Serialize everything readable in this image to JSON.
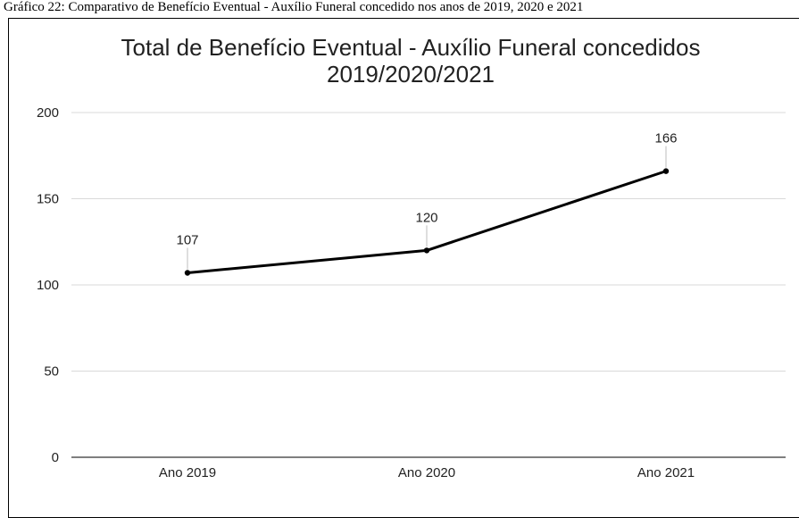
{
  "caption": "Gráfico 22: Comparativo de Benefício Eventual - Auxílio Funeral concedido nos anos de 2019, 2020 e 2021",
  "chart_data": {
    "type": "line",
    "title": "Total de Benefício Eventual - Auxílio Funeral concedidos",
    "subtitle": "2019/2020/2021",
    "categories": [
      "Ano 2019",
      "Ano 2020",
      "Ano 2021"
    ],
    "values": [
      107,
      120,
      166
    ],
    "data_labels": [
      "107",
      "120",
      "166"
    ],
    "y_ticks": [
      0,
      50,
      100,
      150,
      200
    ],
    "ylim": [
      0,
      200
    ],
    "grid": true,
    "legend": "none",
    "colors": {
      "line": "#000000",
      "grid": "#d9d9d9",
      "axis": "#333333"
    }
  }
}
